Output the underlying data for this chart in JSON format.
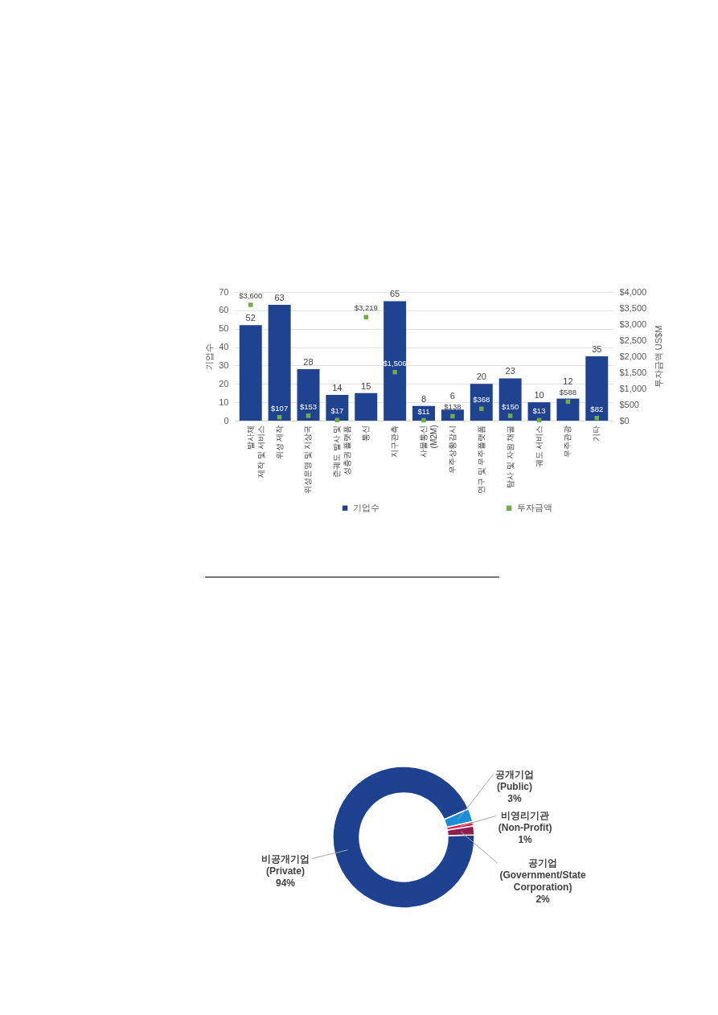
{
  "chart_data": [
    {
      "type": "bar",
      "categories": [
        "발사체\n제작 및 서비스",
        "위성 제작",
        "위성운영 및 지상국",
        "준궤도 발사 및\n성층권 플랫폼",
        "통신",
        "지구관측",
        "사물통신\n(M2M)",
        "우주상황감시",
        "연구 및 우주플랫폼",
        "탐사 및 자원 채굴",
        "궤도 서비스",
        "우주관광",
        "기타"
      ],
      "series": [
        {
          "name": "기업수",
          "type": "bar",
          "color": "#1f4391",
          "values": [
            52,
            63,
            28,
            14,
            15,
            65,
            8,
            6,
            20,
            23,
            10,
            12,
            35
          ],
          "value_labels": [
            "52",
            "63",
            "28",
            "14",
            "15",
            "65",
            "8",
            "6",
            "20",
            "23",
            "10",
            "12",
            "35"
          ]
        },
        {
          "name": "투자금액",
          "type": "scatter",
          "axis": "y2",
          "color": "#70ad47",
          "values": [
            3600,
            107,
            153,
            17,
            3219,
            1506,
            11,
            138,
            368,
            150,
            13,
            588,
            82
          ],
          "value_labels": [
            "$3,600",
            "$107",
            "$153",
            "$17",
            "$3,219",
            "$1,506",
            "$11",
            "$138",
            "$368",
            "$150",
            "$13",
            "$588",
            "$82"
          ]
        }
      ],
      "ylabel": "기업수",
      "y2label": "투자금액 US$M",
      "ylim": [
        0,
        70
      ],
      "yticks": [
        0,
        10,
        20,
        30,
        40,
        50,
        60,
        70
      ],
      "y2lim": [
        0,
        4000
      ],
      "y2ticks": [
        {
          "value": 0,
          "label": "$0"
        },
        {
          "value": 500,
          "label": "$500"
        },
        {
          "value": 1000,
          "label": "$1,000"
        },
        {
          "value": 1500,
          "label": "$1,500"
        },
        {
          "value": 2000,
          "label": "$2,000"
        },
        {
          "value": 2500,
          "label": "$2,500"
        },
        {
          "value": 3000,
          "label": "$3,000"
        },
        {
          "value": 3500,
          "label": "$3,500"
        },
        {
          "value": 4000,
          "label": "$4,000"
        }
      ],
      "grid": "y",
      "legend": "bottom",
      "marker": "square"
    },
    {
      "type": "donut",
      "categories": [
        "비공개기업\n(Private)",
        "공개기업\n(Public)",
        "비영리기관\n(Non-Profit)",
        "공기업\n(Government/State\nCorporation)"
      ],
      "values": [
        94,
        3,
        1,
        2
      ],
      "colors": [
        "#1e4290",
        "#1b8fd6",
        "#e8174b",
        "#8c1d4f"
      ],
      "value_labels": [
        "94%",
        "3%",
        "1%",
        "2%"
      ]
    }
  ]
}
